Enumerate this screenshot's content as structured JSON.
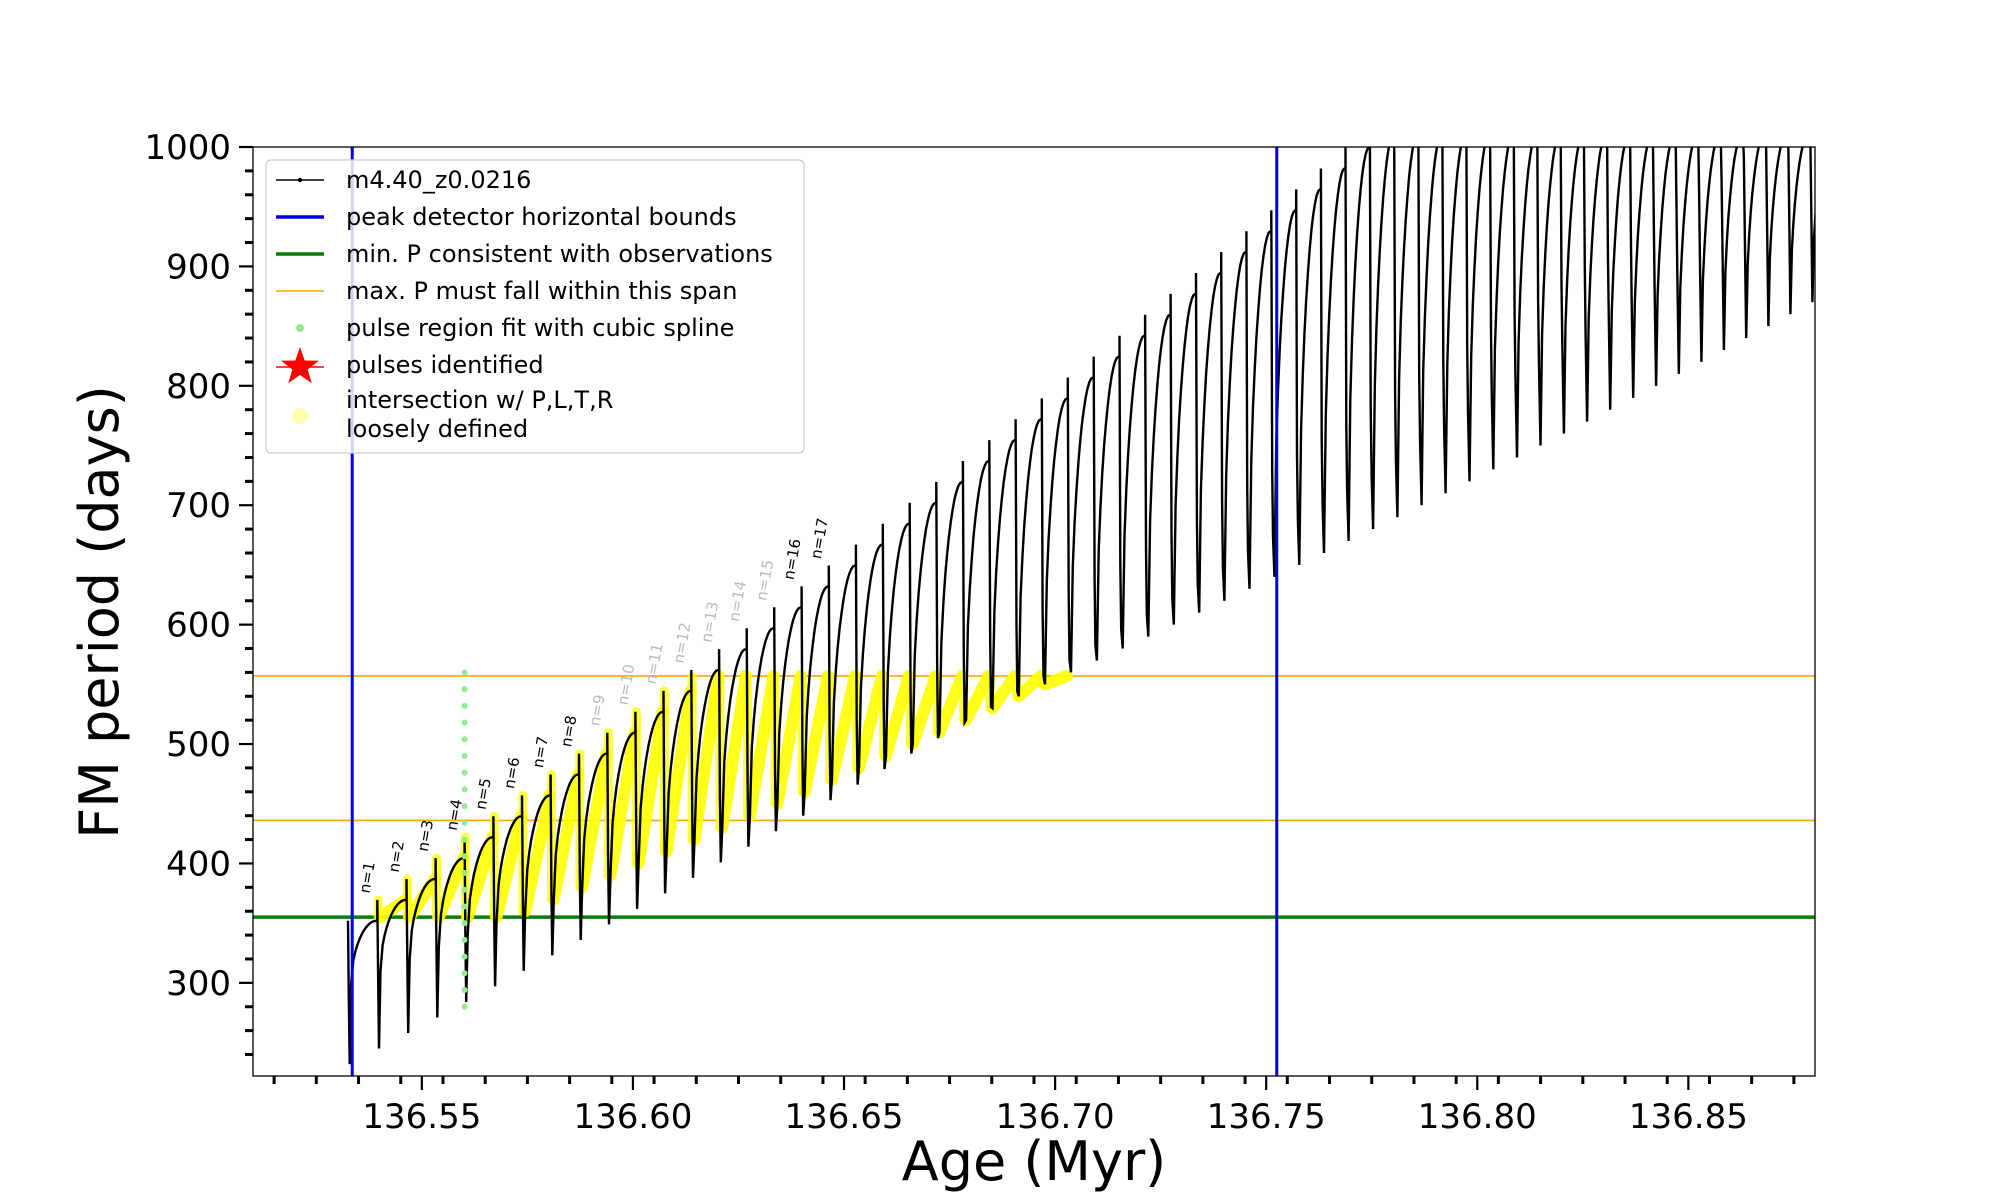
{
  "chart_data": {
    "type": "line",
    "xlabel": "Age (Myr)",
    "ylabel": "FM period (days)",
    "xlim": [
      136.51,
      136.88
    ],
    "ylim": [
      222,
      1000
    ],
    "x_ticks": [
      136.55,
      136.6,
      136.65,
      136.7,
      136.75,
      136.8,
      136.85
    ],
    "x_tick_labels": [
      "136.55",
      "136.60",
      "136.65",
      "136.70",
      "136.75",
      "136.80",
      "136.85"
    ],
    "y_ticks": [
      300,
      400,
      500,
      600,
      700,
      800,
      900,
      1000
    ],
    "y_tick_labels": [
      "300",
      "400",
      "500",
      "600",
      "700",
      "800",
      "900",
      "1000"
    ],
    "series": [
      {
        "name": "m4.40_z0.0216",
        "color": "#000000",
        "style": "line-with-dots",
        "pulse_start_age": 136.5325,
        "pulse_interval_start": 0.00695,
        "pulse_interval_end": 0.00485,
        "pulse_count": 68,
        "first_pulse_max_period": 352,
        "last_pulse_max_period": 1000,
        "first_pulse_min_period": 232,
        "max_period_growth_per_pulse": 17.5
      },
      {
        "name": "peak detector horizontal bounds",
        "color": "#0000ee",
        "type": "vline",
        "x": [
          136.5335,
          136.7525
        ]
      },
      {
        "name": "min. P consistent with observations",
        "color": "#087d08",
        "type": "hline",
        "y": 355
      },
      {
        "name": "max. P must fall within this span",
        "color": "#ffa500",
        "type": "hline",
        "y": [
          436,
          557
        ]
      },
      {
        "name": "pulse region fit with cubic spline",
        "color": "#90ee90",
        "type": "scatter"
      },
      {
        "name": "pulses identified",
        "color": "#ff0000",
        "type": "marker-star"
      },
      {
        "name": "intersection w/ P,L,T,R\nloosely defined",
        "color": "#ffff00",
        "type": "scatter"
      }
    ],
    "legend": {
      "position": "top-left",
      "entries": [
        {
          "label": "m4.40_z0.0216",
          "kind": "line-dot",
          "color": "#000000"
        },
        {
          "label": "peak detector horizontal bounds",
          "kind": "line-thick",
          "color": "#0000ee"
        },
        {
          "label": "min. P consistent with observations",
          "kind": "line-thick",
          "color": "#087d08"
        },
        {
          "label": "max. P must fall within this span",
          "kind": "line-thin",
          "color": "#ffa500"
        },
        {
          "label": "pulse region fit with cubic spline",
          "kind": "dot",
          "color": "#90ee90"
        },
        {
          "label": "pulses identified",
          "kind": "star",
          "color": "#ff0000"
        },
        {
          "label": "intersection w/ P,L,T,R",
          "label2": "loosely defined",
          "kind": "circle",
          "color": "#ffff99"
        }
      ]
    },
    "annotations": [
      {
        "text": "n=1",
        "pulse": 1,
        "color": "#000000"
      },
      {
        "text": "n=2",
        "pulse": 2,
        "color": "#000000"
      },
      {
        "text": "n=3",
        "pulse": 3,
        "color": "#000000"
      },
      {
        "text": "n=4",
        "pulse": 4,
        "color": "#000000"
      },
      {
        "text": "n=5",
        "pulse": 5,
        "color": "#000000"
      },
      {
        "text": "n=6",
        "pulse": 6,
        "color": "#000000"
      },
      {
        "text": "n=7",
        "pulse": 7,
        "color": "#000000"
      },
      {
        "text": "n=8",
        "pulse": 8,
        "color": "#000000"
      },
      {
        "text": "n=9",
        "pulse": 9,
        "color": "#bbbbbb"
      },
      {
        "text": "n=10",
        "pulse": 10,
        "color": "#bbbbbb"
      },
      {
        "text": "n=11",
        "pulse": 11,
        "color": "#bbbbbb"
      },
      {
        "text": "n=12",
        "pulse": 12,
        "color": "#bbbbbb"
      },
      {
        "text": "n=13",
        "pulse": 13,
        "color": "#bbbbbb"
      },
      {
        "text": "n=14",
        "pulse": 14,
        "color": "#bbbbbb"
      },
      {
        "text": "n=15",
        "pulse": 15,
        "color": "#bbbbbb"
      },
      {
        "text": "n=16",
        "pulse": 16,
        "color": "#000000"
      },
      {
        "text": "n=17",
        "pulse": 17,
        "color": "#000000"
      }
    ]
  }
}
